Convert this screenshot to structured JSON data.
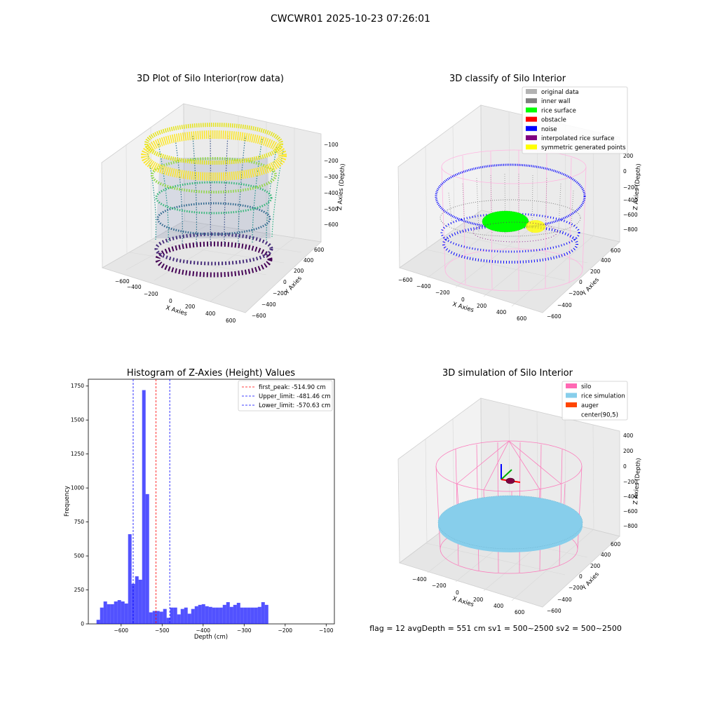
{
  "suptitle": "CWCWR01 2025-10-23 07:26:01",
  "footer": "flag = 12   avgDepth = 551 cm   sv1 = 500~2500   sv2 = 500~2500",
  "chart_data": [
    {
      "type": "scatter3d",
      "title": "3D Plot of Silo Interior(row data)",
      "xlabel": "X Axies",
      "ylabel": "Y Axies",
      "zlabel": "Z Axies (Depth)",
      "xticks": [
        "−600",
        "−400",
        "−200",
        "0",
        "200",
        "400",
        "600"
      ],
      "yticks": [
        "−600",
        "−400",
        "−200",
        "0",
        "200",
        "400",
        "600"
      ],
      "zticks": [
        "−100",
        "−200",
        "−300",
        "−400",
        "−500",
        "−600"
      ],
      "colormap": "viridis"
    },
    {
      "type": "scatter3d",
      "title": "3D classify of Silo Interior",
      "xlabel": "X Axies",
      "ylabel": "Y Axies",
      "zlabel": "Z Axies (Depth)",
      "xticks": [
        "−600",
        "−400",
        "−200",
        "0",
        "200",
        "400",
        "600"
      ],
      "yticks": [
        "−600",
        "−400",
        "−200",
        "0",
        "200",
        "400",
        "600"
      ],
      "zticks": [
        "200",
        "0",
        "−200",
        "−400",
        "−600",
        "−800"
      ],
      "legend": [
        {
          "label": "original data",
          "color": "#b3b3b3"
        },
        {
          "label": "inner wall",
          "color": "#808080"
        },
        {
          "label": "rice surface",
          "color": "#00ff00"
        },
        {
          "label": "obstacle",
          "color": "#ff0000"
        },
        {
          "label": "noise",
          "color": "#0000ff"
        },
        {
          "label": "interpolated rice surface",
          "color": "#800080"
        },
        {
          "label": "symmetric generated points",
          "color": "#ffff00"
        }
      ]
    },
    {
      "type": "bar",
      "title": "Histogram of Z-Axies (Height) Values",
      "xlabel": "Depth (cm)",
      "ylabel": "Frequency",
      "xlim": [
        -680,
        -80
      ],
      "ylim": [
        0,
        1800
      ],
      "xticks": [
        -600,
        -500,
        -400,
        -300,
        -200,
        -100
      ],
      "xtick_labels": [
        "−600",
        "−500",
        "−400",
        "−300",
        "−200",
        "−100"
      ],
      "yticks": [
        0,
        250,
        500,
        750,
        1000,
        1250,
        1500,
        1750
      ],
      "bin_start": -660,
      "bin_width": 8.55,
      "values": [
        30,
        120,
        165,
        145,
        145,
        165,
        175,
        165,
        150,
        660,
        295,
        350,
        325,
        1720,
        955,
        85,
        95,
        95,
        90,
        110,
        45,
        120,
        120,
        70,
        110,
        120,
        75,
        110,
        130,
        140,
        145,
        130,
        125,
        120,
        120,
        120,
        140,
        160,
        125,
        140,
        155,
        120,
        120,
        120,
        120,
        120,
        125,
        160,
        140
      ],
      "bar_color": "#0000ff",
      "vlines": [
        {
          "label": "first_peak: -514.90 cm",
          "x": -514.9,
          "color": "#ff0000"
        },
        {
          "label": "Upper_limit: -481.46 cm",
          "x": -481.46,
          "color": "#0000ff"
        },
        {
          "label": "Lower_limit: -570.63 cm",
          "x": -570.63,
          "color": "#0000ff"
        }
      ]
    },
    {
      "type": "scatter3d",
      "title": "3D simulation of Silo Interior",
      "xlabel": "X Axies",
      "ylabel": "Y Axies",
      "zlabel": "Z Axies (Depth)",
      "xticks": [
        "−400",
        "−200",
        "0",
        "200",
        "400",
        "600"
      ],
      "yticks": [
        "−600",
        "−400",
        "−200",
        "0",
        "200",
        "400",
        "600"
      ],
      "zticks": [
        "400",
        "200",
        "0",
        "−200",
        "−400",
        "−600",
        "−800"
      ],
      "legend": [
        {
          "label": "silo",
          "color": "#ff69b4"
        },
        {
          "label": "rice simulation",
          "color": "#87ceeb"
        },
        {
          "label": "auger",
          "color": "#ff4500"
        },
        {
          "label": "center(90,5)",
          "color": "none"
        }
      ]
    }
  ]
}
